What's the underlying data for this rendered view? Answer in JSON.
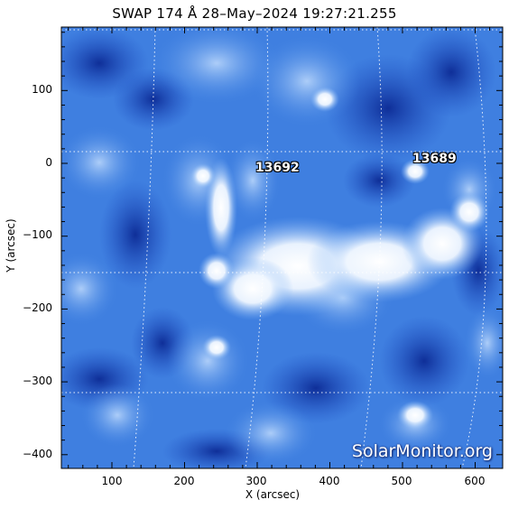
{
  "title": "SWAP 174 Å 28–May–2024 19:27:21.255",
  "xlabel": "X (arcsec)",
  "ylabel": "Y (arcsec)",
  "xticks": [
    "100",
    "200",
    "300",
    "400",
    "500",
    "600"
  ],
  "yticks": [
    "100",
    "0",
    "−100",
    "−200",
    "−300",
    "−400"
  ],
  "regions": [
    {
      "label": "13692"
    },
    {
      "label": "13689"
    }
  ],
  "watermark": "SolarMonitor.org",
  "colors": {
    "background": "#ffffff",
    "solar_dark": "#0f2f9c",
    "solar_mid": "#3d7fe0",
    "solar_bright": "#ffffff",
    "grid": "#ffffff"
  }
}
